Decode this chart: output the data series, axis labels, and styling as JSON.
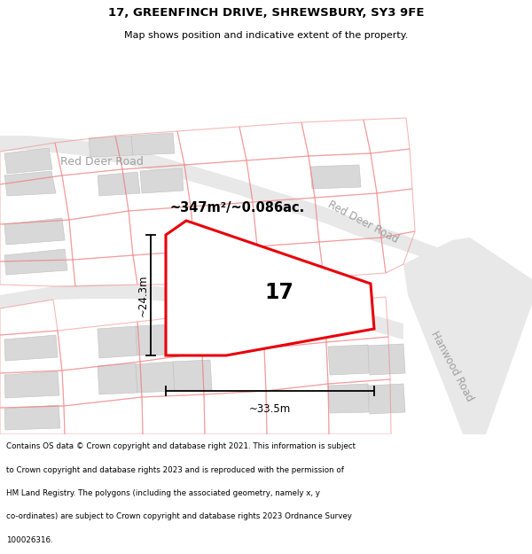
{
  "title_line1": "17, GREENFINCH DRIVE, SHREWSBURY, SY3 9FE",
  "title_line2": "Map shows position and indicative extent of the property.",
  "area_label": "~347m²/~0.086ac.",
  "number_label": "17",
  "dim_width": "~33.5m",
  "dim_height": "~24.3m",
  "road_label_left": "Red Deer Road",
  "road_label_diag": "Red Deer Road",
  "road_label_right": "Hanwood Road",
  "footer_lines": [
    "Contains OS data © Crown copyright and database right 2021. This information is subject",
    "to Crown copyright and database rights 2023 and is reproduced with the permission of",
    "HM Land Registry. The polygons (including the associated geometry, namely x, y",
    "co-ordinates) are subject to Crown copyright and database rights 2023 Ordnance Survey",
    "100026316."
  ],
  "bg_color": "#ffffff",
  "map_bg": "#f7f7f7",
  "road_color": "#e8e8e8",
  "road_edge": "#d0d0d0",
  "plot_red": "#e8000a",
  "plot_fill": "#ffffff",
  "bldg_color": "#d8d8d8",
  "bldg_edge": "#c0c0c0",
  "outline_red": "#f5a0a0",
  "outline_red_strong": "#f08080",
  "label_gray": "#a0a0a0"
}
